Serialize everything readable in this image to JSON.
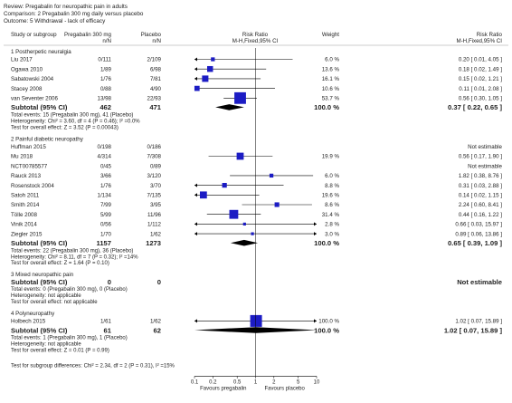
{
  "header": {
    "review": "Review:  Pregabalin for neuropathic pain in adults",
    "comparison": "Comparison:  2 Pregabalin 300 mg daily versus placebo",
    "outcome": "Outcome:  5 Withdrawal - lack of efficacy"
  },
  "columns": {
    "study": "Study or subgroup",
    "exp": "Pregabalin 300 mg",
    "ctrl": "Placebo",
    "nN": "n/N",
    "rr_header": "Risk Ratio",
    "rr_method": "M-H,Fixed,95% CI",
    "weight": "Weight",
    "rr_right_header": "Risk Ratio",
    "rr_right_method": "M-H,Fixed,95% CI"
  },
  "colors": {
    "square": "#1c1cc4",
    "diamond": "#000000",
    "text": "#222222"
  },
  "chart_data": {
    "type": "forest",
    "scale": "log",
    "x_ticks": [
      "0.1",
      "0.2",
      "0.5",
      "1",
      "2",
      "5",
      "10"
    ],
    "x_tick_values": [
      0.1,
      0.2,
      0.5,
      1,
      2,
      5,
      10
    ],
    "xlim": [
      0.1,
      10
    ],
    "favours_left": "Favours pregabalin",
    "favours_right": "Favours placebo",
    "subgroups": [
      {
        "title": "1 Postherpetic neuralgia",
        "studies": [
          {
            "name": "Liu 2017",
            "exp": "0/111",
            "ctrl": "2/109",
            "weight": "6.0 %",
            "rr_text": "0.20 [ 0.01, 4.05 ]",
            "rr": 0.2,
            "lo": 0.01,
            "hi": 4.05
          },
          {
            "name": "Ogawa 2010",
            "exp": "1/89",
            "ctrl": "6/98",
            "weight": "13.6 %",
            "rr_text": "0.18 [ 0.02, 1.49 ]",
            "rr": 0.18,
            "lo": 0.02,
            "hi": 1.49
          },
          {
            "name": "Sabatowski 2004",
            "exp": "1/76",
            "ctrl": "7/81",
            "weight": "16.1 %",
            "rr_text": "0.15 [ 0.02, 1.21 ]",
            "rr": 0.15,
            "lo": 0.02,
            "hi": 1.21
          },
          {
            "name": "Stacey 2008",
            "exp": "0/88",
            "ctrl": "4/90",
            "weight": "10.6 %",
            "rr_text": "0.11 [ 0.01, 2.08 ]",
            "rr": 0.11,
            "lo": 0.01,
            "hi": 2.08
          },
          {
            "name": "van Seventer 2006",
            "exp": "13/98",
            "ctrl": "22/93",
            "weight": "53.7 %",
            "rr_text": "0.56 [ 0.30, 1.05 ]",
            "rr": 0.56,
            "lo": 0.3,
            "hi": 1.05
          }
        ],
        "subtotal": {
          "label": "Subtotal (95% CI)",
          "exp_n": "462",
          "ctrl_n": "471",
          "weight": "100.0 %",
          "rr_text": "0.37 [ 0.22, 0.65 ]",
          "rr": 0.37,
          "lo": 0.22,
          "hi": 0.65
        },
        "notes": [
          "Total events: 15 (Pregabalin 300 mg), 41 (Placebo)",
          "Heterogeneity: Chi² = 3.60, df = 4 (P = 0.46); I² =0.0%",
          "Test for overall effect: Z = 3.52 (P = 0.00043)"
        ]
      },
      {
        "title": "2 Painful diabetic neuropathy",
        "studies": [
          {
            "name": "Huffman 2015",
            "exp": "0/198",
            "ctrl": "0/186",
            "weight": "",
            "rr_text": "Not estimable"
          },
          {
            "name": "Mu 2018",
            "exp": "4/314",
            "ctrl": "7/308",
            "weight": "19.9 %",
            "rr_text": "0.56 [ 0.17, 1.90 ]",
            "rr": 0.56,
            "lo": 0.17,
            "hi": 1.9
          },
          {
            "name": "NCT00785577",
            "exp": "0/45",
            "ctrl": "0/89",
            "weight": "",
            "rr_text": "Not estimable"
          },
          {
            "name": "Rauck 2013",
            "exp": "3/66",
            "ctrl": "3/120",
            "weight": "6.0 %",
            "rr_text": "1.82 [ 0.38, 8.76 ]",
            "rr": 1.82,
            "lo": 0.38,
            "hi": 8.76
          },
          {
            "name": "Rosenstock 2004",
            "exp": "1/76",
            "ctrl": "3/70",
            "weight": "8.8 %",
            "rr_text": "0.31 [ 0.03, 2.88 ]",
            "rr": 0.31,
            "lo": 0.03,
            "hi": 2.88
          },
          {
            "name": "Satoh 2011",
            "exp": "1/134",
            "ctrl": "7/135",
            "weight": "19.6 %",
            "rr_text": "0.14 [ 0.02, 1.15 ]",
            "rr": 0.14,
            "lo": 0.02,
            "hi": 1.15
          },
          {
            "name": "Smith 2014",
            "exp": "7/99",
            "ctrl": "3/95",
            "weight": "8.6 %",
            "rr_text": "2.24 [ 0.60, 8.41 ]",
            "rr": 2.24,
            "lo": 0.6,
            "hi": 8.41
          },
          {
            "name": "Tölle 2008",
            "exp": "5/99",
            "ctrl": "11/96",
            "weight": "31.4 %",
            "rr_text": "0.44 [ 0.16, 1.22 ]",
            "rr": 0.44,
            "lo": 0.16,
            "hi": 1.22
          },
          {
            "name": "Vinik 2014",
            "exp": "0/56",
            "ctrl": "1/112",
            "weight": "2.8 %",
            "rr_text": "0.66 [ 0.03, 15.97 ]",
            "rr": 0.66,
            "lo": 0.03,
            "hi": 15.97
          },
          {
            "name": "Ziegler 2015",
            "exp": "1/70",
            "ctrl": "1/62",
            "weight": "3.0 %",
            "rr_text": "0.89 [ 0.06, 13.86 ]",
            "rr": 0.89,
            "lo": 0.06,
            "hi": 13.86
          }
        ],
        "subtotal": {
          "label": "Subtotal (95% CI)",
          "exp_n": "1157",
          "ctrl_n": "1273",
          "weight": "100.0 %",
          "rr_text": "0.65 [ 0.39, 1.09 ]",
          "rr": 0.65,
          "lo": 0.39,
          "hi": 1.09
        },
        "notes": [
          "Total events: 22 (Pregabalin 300 mg), 36 (Placebo)",
          "Heterogeneity: Chi² = 8.11, df = 7 (P = 0.32); I² =14%",
          "Test for overall effect: Z = 1.64 (P = 0.10)"
        ]
      },
      {
        "title": "3 Mixed neuropathic pain",
        "studies": [],
        "subtotal": {
          "label": "Subtotal (95% CI)",
          "exp_n": "0",
          "ctrl_n": "0",
          "weight": "",
          "rr_text": "Not estimable"
        },
        "notes": [
          "Total events: 0 (Pregabalin 300 mg), 0 (Placebo)",
          "Heterogeneity: not applicable",
          "Test for overall effect: not applicable"
        ]
      },
      {
        "title": "4 Polyneuropathy",
        "studies": [
          {
            "name": "Holbech 2015",
            "exp": "1/61",
            "ctrl": "1/62",
            "weight": "100.0 %",
            "rr_text": "1.02 [ 0.07, 15.89 ]",
            "rr": 1.02,
            "lo": 0.07,
            "hi": 15.89
          }
        ],
        "subtotal": {
          "label": "Subtotal (95% CI)",
          "exp_n": "61",
          "ctrl_n": "62",
          "weight": "100.0 %",
          "rr_text": "1.02 [ 0.07, 15.89 ]",
          "rr": 1.02,
          "lo": 0.07,
          "hi": 15.89
        },
        "notes": [
          "Total events: 1 (Pregabalin 300 mg), 1 (Placebo)",
          "Heterogeneity: not applicable",
          "Test for overall effect: Z = 0.01 (P = 0.99)"
        ]
      }
    ],
    "footer": "Test for subgroup differences: Chi² = 2.34, df = 2 (P = 0.31), I² =15%"
  }
}
